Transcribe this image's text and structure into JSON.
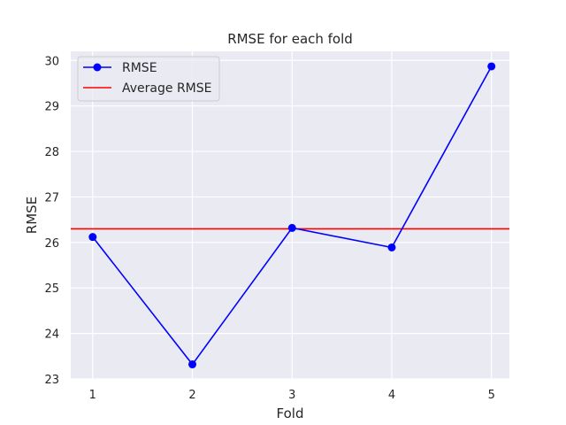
{
  "chart_data": {
    "type": "line",
    "title": "RMSE for each fold",
    "xlabel": "Fold",
    "ylabel": "RMSE",
    "x": [
      1,
      2,
      3,
      4,
      5
    ],
    "xlim": [
      0.78,
      5.18
    ],
    "ylim": [
      23,
      30.2
    ],
    "xticks": [
      "1",
      "2",
      "3",
      "4",
      "5"
    ],
    "yticks": [
      "23",
      "24",
      "25",
      "26",
      "27",
      "28",
      "29",
      "30"
    ],
    "grid": true,
    "legend_position": "top-left",
    "background": "#eaeaf2",
    "series": [
      {
        "name": "RMSE",
        "values": [
          26.12,
          23.32,
          26.32,
          25.89,
          29.87
        ],
        "color": "#0000ff",
        "marker": "circle"
      }
    ],
    "hlines": [
      {
        "name": "Average RMSE",
        "value": 26.3,
        "color": "#ff0000"
      }
    ]
  }
}
